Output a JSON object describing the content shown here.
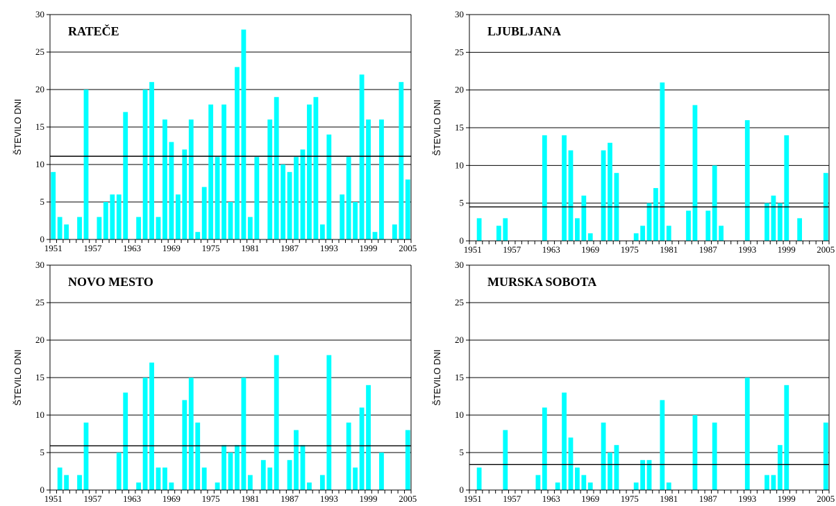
{
  "chart_data": [
    {
      "type": "bar",
      "title": "RATEČE",
      "ylabel": "ŠTEVILO DNI",
      "ylim": [
        0,
        30
      ],
      "yticks": [
        0,
        5,
        10,
        15,
        20,
        25,
        30
      ],
      "xticks": [
        "1951",
        "1957",
        "1963",
        "1969",
        "1975",
        "1981",
        "1987",
        "1993",
        "1999",
        "2005"
      ],
      "x_start": 1951,
      "x_end": 2005,
      "average": 11.1,
      "bar_color": "#00FFFF",
      "grid": true,
      "values": [
        9,
        3,
        2,
        0,
        3,
        20,
        0,
        3,
        5,
        6,
        6,
        17,
        0,
        3,
        20,
        21,
        3,
        16,
        13,
        6,
        12,
        16,
        1,
        7,
        18,
        11,
        18,
        5,
        23,
        28,
        3,
        11,
        0,
        16,
        19,
        10,
        9,
        11,
        12,
        18,
        19,
        2,
        14,
        0,
        6,
        11,
        5,
        22,
        16,
        1,
        16,
        0,
        2,
        21,
        8
      ]
    },
    {
      "type": "bar",
      "title": "LJUBLJANA",
      "ylabel": "ŠTEVILO DNI",
      "ylim": [
        0,
        30
      ],
      "yticks": [
        0,
        5,
        10,
        15,
        20,
        25,
        30
      ],
      "xticks": [
        "1951",
        "1957",
        "1963",
        "1969",
        "1975",
        "1981",
        "1987",
        "1993",
        "1999",
        "2005"
      ],
      "x_start": 1951,
      "x_end": 2005,
      "average": 4.5,
      "bar_color": "#00FFFF",
      "grid": true,
      "values": [
        0,
        3,
        0,
        0,
        2,
        3,
        0,
        0,
        0,
        0,
        0,
        14,
        0,
        0,
        14,
        12,
        3,
        6,
        1,
        0,
        12,
        13,
        9,
        0,
        0,
        1,
        2,
        5,
        7,
        21,
        2,
        0,
        0,
        4,
        18,
        0,
        4,
        10,
        2,
        0,
        0,
        0,
        16,
        0,
        0,
        5,
        6,
        5,
        14,
        0,
        3,
        0,
        0,
        0,
        9
      ]
    },
    {
      "type": "bar",
      "title": "NOVO MESTO",
      "ylabel": "ŠTEVILO DNI",
      "ylim": [
        0,
        30
      ],
      "yticks": [
        0,
        5,
        10,
        15,
        20,
        25,
        30
      ],
      "xticks": [
        "1951",
        "1957",
        "1963",
        "1969",
        "1975",
        "1981",
        "1987",
        "1993",
        "1999",
        "2005"
      ],
      "x_start": 1951,
      "x_end": 2005,
      "average": 5.9,
      "bar_color": "#00FFFF",
      "grid": true,
      "values": [
        0,
        3,
        2,
        0,
        2,
        9,
        0,
        0,
        0,
        0,
        5,
        13,
        0,
        1,
        15,
        17,
        3,
        3,
        1,
        0,
        12,
        15,
        9,
        3,
        0,
        1,
        6,
        5,
        6,
        15,
        2,
        0,
        4,
        3,
        18,
        0,
        4,
        8,
        6,
        1,
        0,
        2,
        18,
        0,
        0,
        9,
        3,
        11,
        14,
        0,
        5,
        0,
        0,
        0,
        8
      ]
    },
    {
      "type": "bar",
      "title": "MURSKA SOBOTA",
      "ylabel": "ŠTEVILO DNI",
      "ylim": [
        0,
        30
      ],
      "yticks": [
        0,
        5,
        10,
        15,
        20,
        25,
        30
      ],
      "xticks": [
        "1951",
        "1957",
        "1963",
        "1969",
        "1975",
        "1981",
        "1987",
        "1993",
        "1999",
        "2005"
      ],
      "x_start": 1951,
      "x_end": 2005,
      "average": 3.4,
      "bar_color": "#00FFFF",
      "grid": true,
      "values": [
        0,
        3,
        0,
        0,
        0,
        8,
        0,
        0,
        0,
        0,
        2,
        11,
        0,
        1,
        13,
        7,
        3,
        2,
        1,
        0,
        9,
        5,
        6,
        0,
        0,
        1,
        4,
        4,
        0,
        12,
        1,
        0,
        0,
        0,
        10,
        0,
        0,
        9,
        0,
        0,
        0,
        0,
        15,
        0,
        0,
        2,
        2,
        6,
        14,
        0,
        0,
        0,
        0,
        0,
        9
      ]
    }
  ]
}
